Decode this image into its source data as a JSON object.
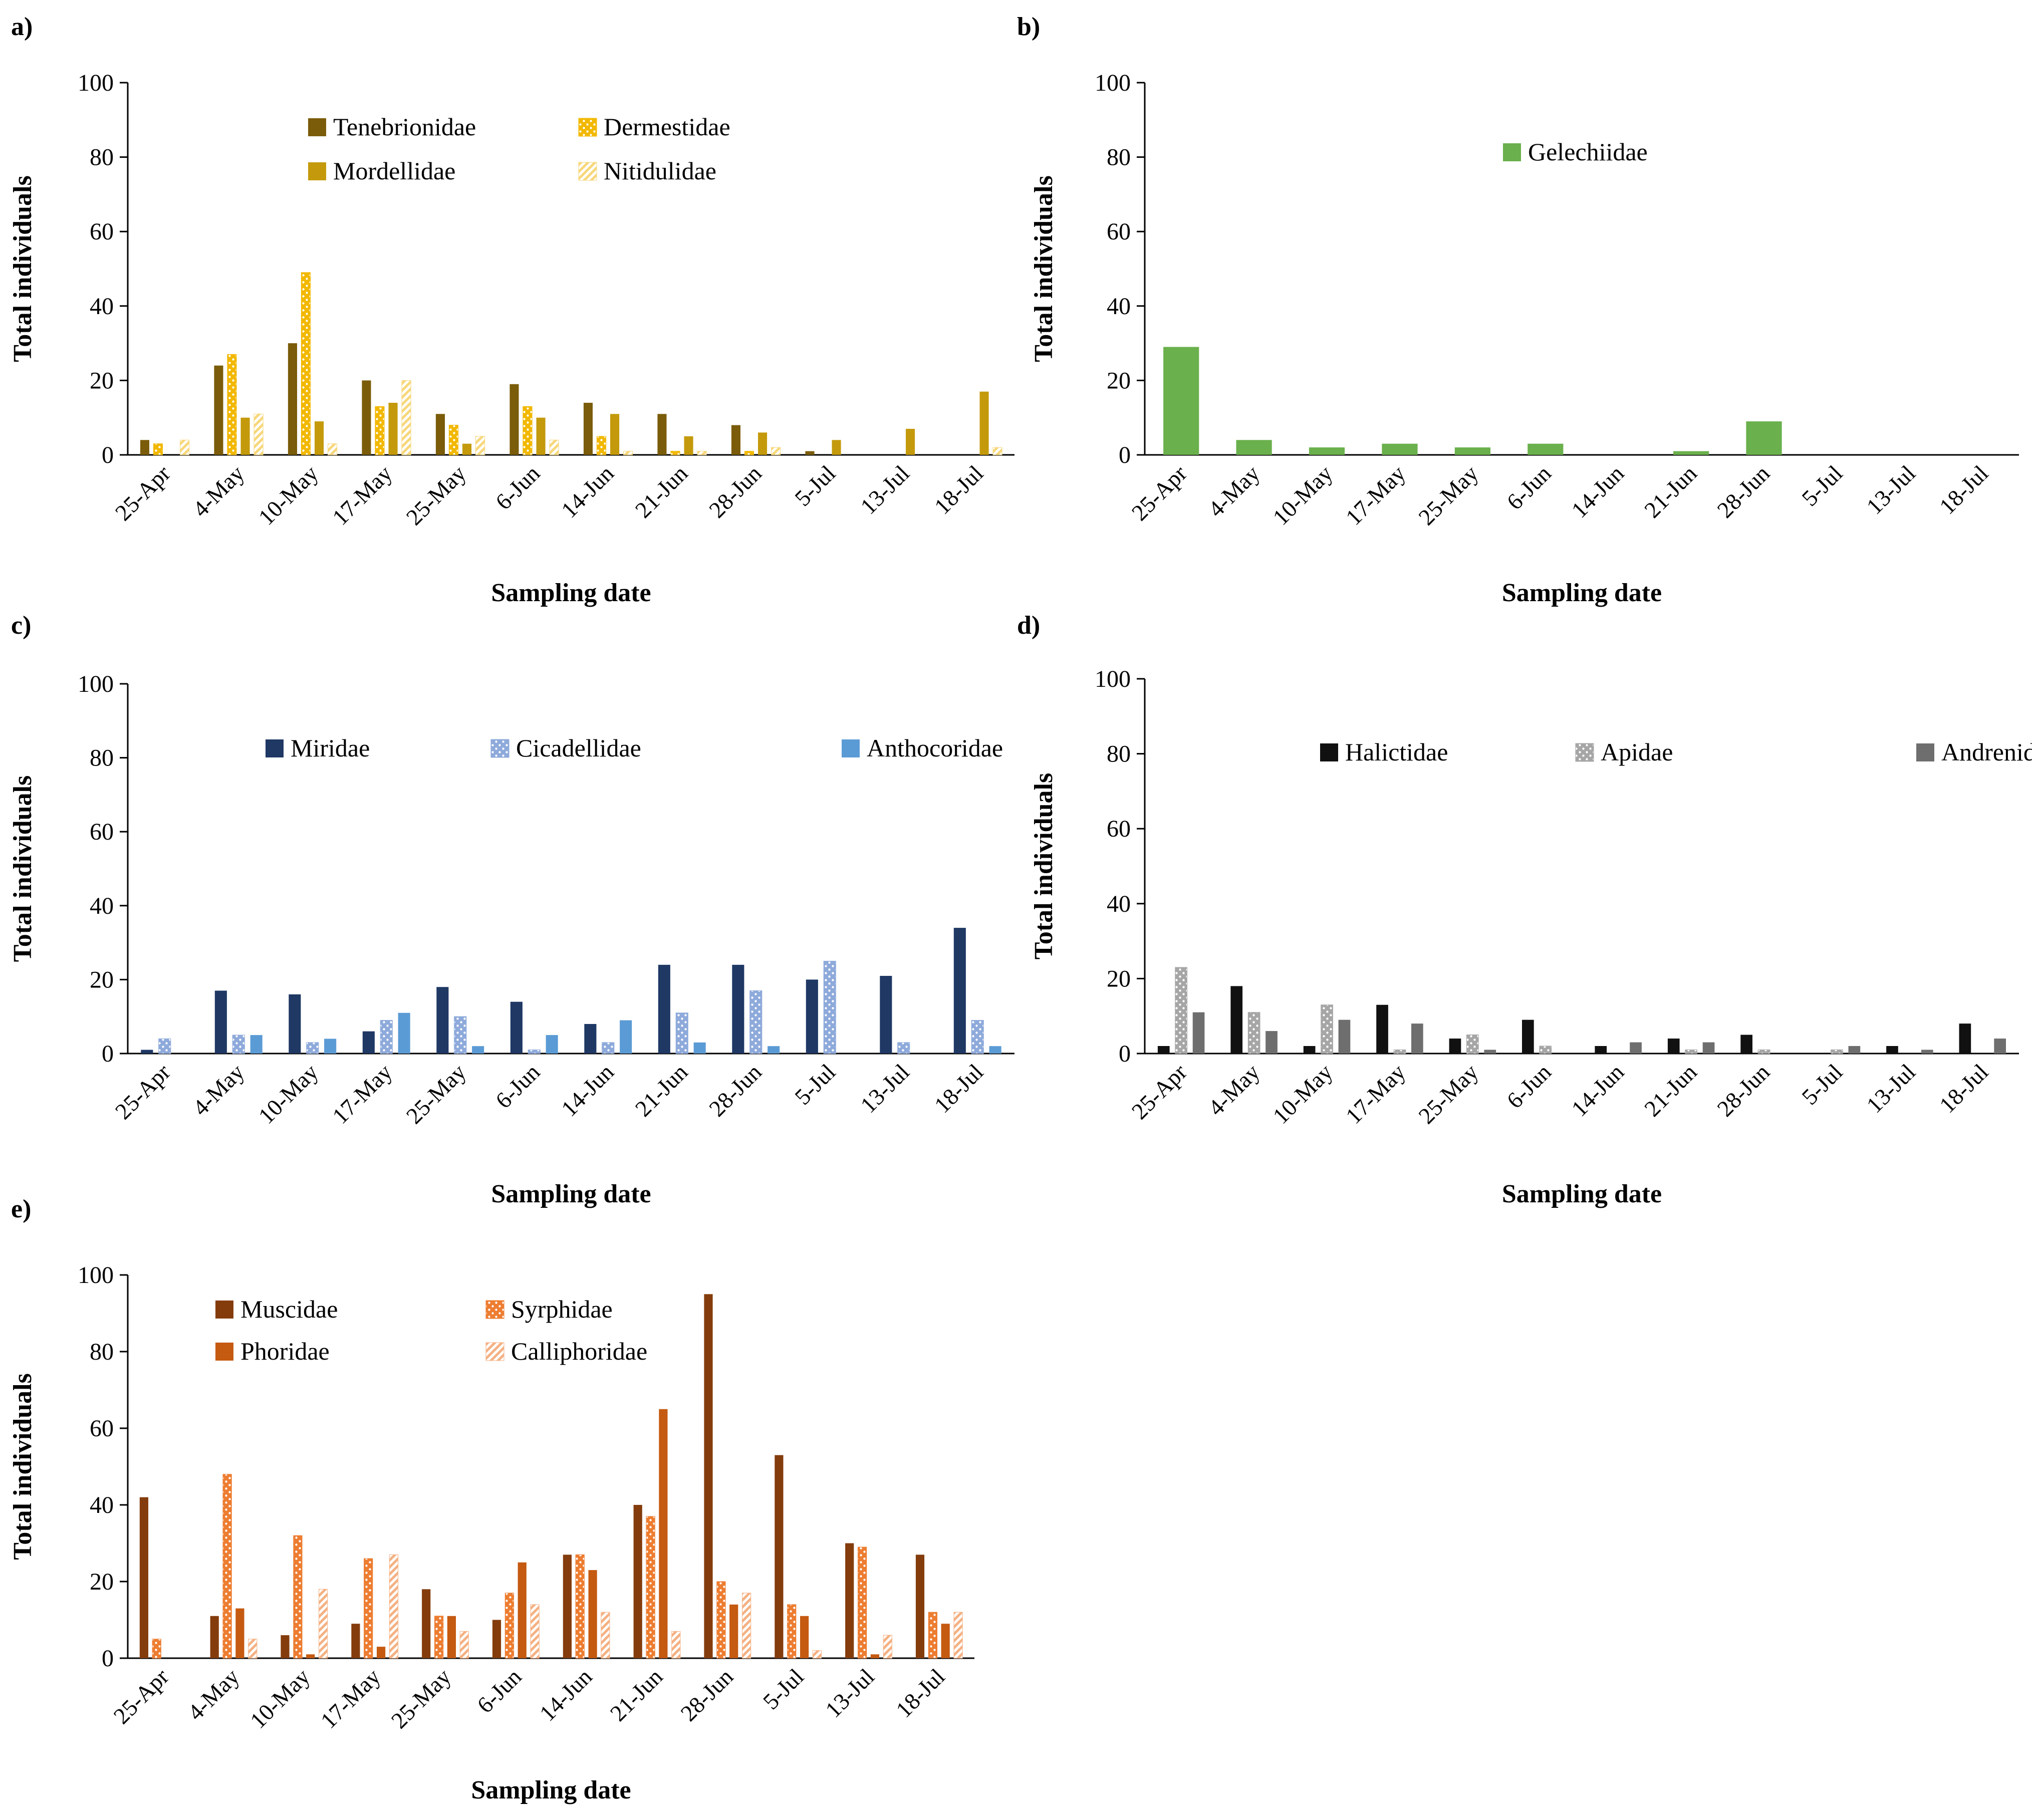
{
  "figure": {
    "sampling_date_label": "Sampling date",
    "y_axis_label": "Total individuals"
  },
  "chart_data": [
    {
      "panel": "a)",
      "type": "bar",
      "title": "",
      "xlabel": "Sampling date",
      "ylabel": "Total individuals",
      "ylim": [
        0,
        100
      ],
      "yticks": [
        0,
        20,
        40,
        60,
        80,
        100
      ],
      "categories": [
        "25-Apr",
        "4-May",
        "10-May",
        "17-May",
        "25-May",
        "6-Jun",
        "14-Jun",
        "21-Jun",
        "28-Jun",
        "5-Jul",
        "13-Jul",
        "18-Jul"
      ],
      "legend_columns": 2,
      "series": [
        {
          "name": "Tenebrionidae",
          "color": "#7a5c0a",
          "pattern": "solid",
          "values": [
            4,
            24,
            30,
            20,
            11,
            19,
            14,
            11,
            8,
            1,
            0,
            0
          ]
        },
        {
          "name": "Dermestidae",
          "color": "#f2b800",
          "pattern": "dots",
          "values": [
            3,
            27,
            49,
            13,
            8,
            13,
            5,
            1,
            1,
            0,
            0,
            0
          ]
        },
        {
          "name": "Mordellidae",
          "color": "#c49a0c",
          "pattern": "solid",
          "values": [
            0,
            10,
            9,
            14,
            3,
            10,
            11,
            5,
            6,
            4,
            7,
            17
          ]
        },
        {
          "name": "Nitidulidae",
          "color": "#f7d77a",
          "pattern": "stripes",
          "values": [
            4,
            11,
            3,
            20,
            5,
            4,
            1,
            1,
            2,
            0,
            0,
            2
          ]
        }
      ]
    },
    {
      "panel": "b)",
      "type": "bar",
      "title": "",
      "xlabel": "Sampling date",
      "ylabel": "Total individuals",
      "ylim": [
        0,
        100
      ],
      "yticks": [
        0,
        20,
        40,
        60,
        80,
        100
      ],
      "categories": [
        "25-Apr",
        "4-May",
        "10-May",
        "17-May",
        "25-May",
        "6-Jun",
        "14-Jun",
        "21-Jun",
        "28-Jun",
        "5-Jul",
        "13-Jul",
        "18-Jul"
      ],
      "legend_columns": 1,
      "series": [
        {
          "name": "Gelechiidae",
          "color": "#6ab04c",
          "pattern": "solid",
          "values": [
            29,
            4,
            2,
            3,
            2,
            3,
            0,
            1,
            9,
            0,
            0,
            0
          ]
        }
      ]
    },
    {
      "panel": "c)",
      "type": "bar",
      "title": "",
      "xlabel": "Sampling date",
      "ylabel": "Total individuals",
      "ylim": [
        0,
        100
      ],
      "yticks": [
        0,
        20,
        40,
        60,
        80,
        100
      ],
      "categories": [
        "25-Apr",
        "4-May",
        "10-May",
        "17-May",
        "25-May",
        "6-Jun",
        "14-Jun",
        "21-Jun",
        "28-Jun",
        "5-Jul",
        "13-Jul",
        "18-Jul"
      ],
      "legend_columns": 3,
      "series": [
        {
          "name": "Miridae",
          "color": "#1f3864",
          "pattern": "solid",
          "values": [
            1,
            17,
            16,
            6,
            18,
            14,
            8,
            24,
            24,
            20,
            21,
            34
          ]
        },
        {
          "name": "Cicadellidae",
          "color": "#8eaadb",
          "pattern": "dots",
          "values": [
            4,
            5,
            3,
            9,
            10,
            1,
            3,
            11,
            17,
            25,
            3,
            9
          ]
        },
        {
          "name": "Anthocoridae",
          "color": "#5b9bd5",
          "pattern": "solid",
          "values": [
            0,
            5,
            4,
            11,
            2,
            5,
            9,
            3,
            2,
            0,
            0,
            2
          ]
        }
      ]
    },
    {
      "panel": "d)",
      "type": "bar",
      "title": "",
      "xlabel": "Sampling date",
      "ylabel": "Total individuals",
      "ylim": [
        0,
        100
      ],
      "yticks": [
        0,
        20,
        40,
        60,
        80,
        100
      ],
      "categories": [
        "25-Apr",
        "4-May",
        "10-May",
        "17-May",
        "25-May",
        "6-Jun",
        "14-Jun",
        "21-Jun",
        "28-Jun",
        "5-Jul",
        "13-Jul",
        "18-Jul"
      ],
      "legend_columns": 3,
      "series": [
        {
          "name": "Halictidae",
          "color": "#111111",
          "pattern": "solid",
          "values": [
            2,
            18,
            2,
            13,
            4,
            9,
            2,
            4,
            5,
            0,
            2,
            8
          ]
        },
        {
          "name": "Apidae",
          "color": "#a6a6a6",
          "pattern": "dots",
          "values": [
            23,
            11,
            13,
            1,
            5,
            2,
            0,
            1,
            1,
            1,
            0,
            0
          ]
        },
        {
          "name": "Andrenidae",
          "color": "#6e6e6e",
          "pattern": "solid",
          "values": [
            11,
            6,
            9,
            8,
            1,
            0,
            3,
            3,
            0,
            2,
            1,
            4
          ]
        }
      ]
    },
    {
      "panel": "e)",
      "type": "bar",
      "title": "",
      "xlabel": "Sampling date",
      "ylabel": "Total individuals",
      "ylim": [
        0,
        100
      ],
      "yticks": [
        0,
        20,
        40,
        60,
        80,
        100
      ],
      "categories": [
        "25-Apr",
        "4-May",
        "10-May",
        "17-May",
        "25-May",
        "6-Jun",
        "14-Jun",
        "21-Jun",
        "28-Jun",
        "5-Jul",
        "13-Jul",
        "18-Jul"
      ],
      "legend_columns": 2,
      "series": [
        {
          "name": "Muscidae",
          "color": "#843c0c",
          "pattern": "solid",
          "values": [
            42,
            11,
            6,
            9,
            18,
            10,
            27,
            40,
            95,
            53,
            30,
            27
          ]
        },
        {
          "name": "Syrphidae",
          "color": "#ed7d31",
          "pattern": "dots",
          "values": [
            5,
            48,
            32,
            26,
            11,
            17,
            27,
            37,
            20,
            14,
            29,
            12
          ]
        },
        {
          "name": "Phoridae",
          "color": "#c55a11",
          "pattern": "solid",
          "values": [
            0,
            13,
            1,
            3,
            11,
            25,
            23,
            65,
            14,
            11,
            1,
            9
          ]
        },
        {
          "name": "Calliphoridae",
          "color": "#f4b183",
          "pattern": "stripes",
          "values": [
            0,
            5,
            18,
            27,
            7,
            14,
            12,
            7,
            17,
            2,
            6,
            12
          ]
        }
      ]
    }
  ]
}
